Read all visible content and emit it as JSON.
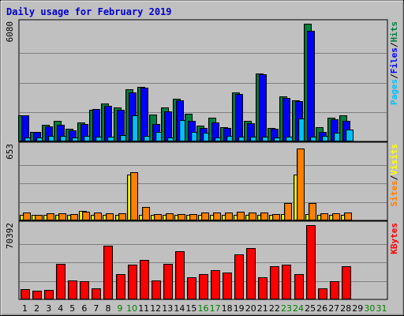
{
  "chart_data": {
    "type": "bar",
    "title": "Daily usage for February 2019",
    "categories": [
      "1",
      "2",
      "3",
      "4",
      "5",
      "6",
      "7",
      "8",
      "9",
      "10",
      "11",
      "12",
      "13",
      "14",
      "15",
      "16",
      "17",
      "18",
      "19",
      "20",
      "21",
      "22",
      "23",
      "24",
      "25",
      "26",
      "27",
      "28",
      "29",
      "30",
      "31"
    ],
    "weekend_days": [
      "9",
      "10",
      "16",
      "17",
      "23",
      "24",
      "30",
      "31"
    ],
    "panels": [
      {
        "id": "hits-files-pages",
        "max_label": "6080",
        "ylim": [
          0,
          6080
        ],
        "grid": true,
        "labels": [
          {
            "text": "Pages",
            "color": "#00c0ff"
          },
          {
            "text": "/",
            "color": "#000000"
          },
          {
            "text": "Files",
            "color": "#0000ff"
          },
          {
            "text": "/",
            "color": "#000000"
          },
          {
            "text": "Hits",
            "color": "#008040"
          }
        ],
        "series": [
          {
            "name": "Hits",
            "color": "#008040",
            "values": [
              1310,
              470,
              830,
              1010,
              600,
              950,
              1610,
              1920,
              1710,
              2690,
              2780,
              1370,
              1720,
              2160,
              1390,
              780,
              1200,
              680,
              2500,
              1010,
              3500,
              640,
              2290,
              2110,
              6080,
              700,
              1200,
              1330,
              0,
              0,
              0
            ]
          },
          {
            "name": "Files",
            "color": "#0000ff",
            "values": [
              1310,
              440,
              750,
              820,
              550,
              870,
              1650,
              1790,
              1590,
              2500,
              2770,
              880,
              1520,
              2080,
              1040,
              640,
              940,
              650,
              2420,
              910,
              3440,
              610,
              2220,
              2060,
              5700,
              460,
              1120,
              1040,
              0,
              0,
              0
            ]
          },
          {
            "name": "Pages",
            "color": "#00c0ff",
            "values": [
              150,
              170,
              260,
              250,
              160,
              260,
              220,
              220,
              280,
              1320,
              260,
              440,
              160,
              1070,
              470,
              400,
              170,
              240,
              200,
              220,
              210,
              180,
              190,
              1140,
              210,
              230,
              400,
              560,
              0,
              0,
              0
            ]
          }
        ]
      },
      {
        "id": "visits-sites",
        "max_label": "653",
        "ylim": [
          0,
          653
        ],
        "grid": true,
        "labels": [
          {
            "text": "Sites",
            "color": "#ff8000"
          },
          {
            "text": "/",
            "color": "#000000"
          },
          {
            "text": "Visits",
            "color": "#ffff00"
          }
        ],
        "series": [
          {
            "name": "Visits",
            "color": "#ffff00",
            "values": [
              40,
              40,
              40,
              40,
              40,
              80,
              40,
              40,
              40,
              400,
              40,
              40,
              40,
              40,
              40,
              40,
              40,
              40,
              40,
              40,
              40,
              40,
              50,
              400,
              50,
              40,
              40,
              40,
              0,
              0,
              0
            ]
          },
          {
            "name": "Sites",
            "color": "#ff8000",
            "values": [
              60,
              45,
              55,
              55,
              50,
              70,
              60,
              55,
              55,
              420,
              110,
              50,
              55,
              50,
              50,
              60,
              60,
              65,
              70,
              60,
              60,
              50,
              150,
              630,
              150,
              55,
              55,
              60,
              0,
              0,
              0
            ]
          }
        ]
      },
      {
        "id": "kbytes",
        "max_label": "70392",
        "ylim": [
          0,
          70392
        ],
        "grid": true,
        "labels": [
          {
            "text": "KBytes",
            "color": "#ff0000"
          }
        ],
        "series": [
          {
            "name": "KBytes",
            "color": "#ff0000",
            "values": [
              9000,
              7500,
              8000,
              33000,
              17500,
              16400,
              9900,
              51000,
              23300,
              32800,
              37000,
              17600,
              33400,
              45500,
              20400,
              23800,
              27500,
              25200,
              42300,
              48800,
              20400,
              31000,
              32600,
              23500,
              70392,
              9800,
              16600,
              31200,
              0,
              0,
              0
            ]
          }
        ]
      }
    ]
  }
}
